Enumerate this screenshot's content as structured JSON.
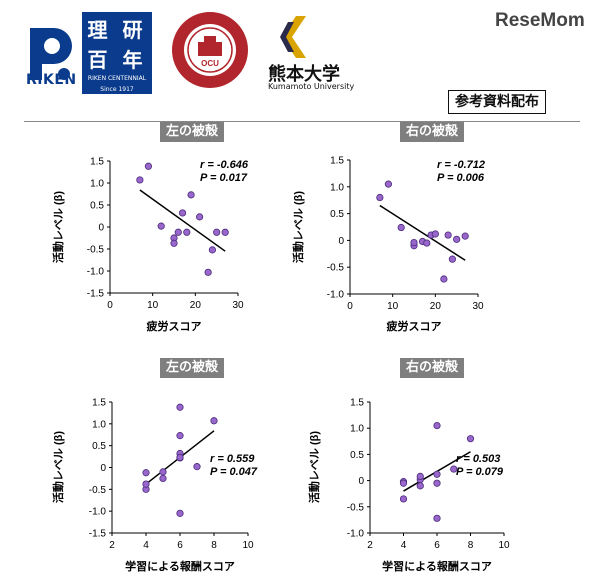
{
  "header": {
    "riken_text": "RIKEN",
    "centennial_line1": "理 研",
    "centennial_line2": "百 年",
    "centennial_small1": "RIKEN CENTENNIAL",
    "centennial_small2": "Since 1917",
    "kumamoto_jp": "熊本大学",
    "kumamoto_en": "Kumamoto University",
    "resemom": "ReseMom",
    "reference_label": "参考資料配布"
  },
  "colors": {
    "marker_fill": "#9966cc",
    "marker_stroke": "#4b2c7a",
    "title_bg": "#7f7f7f",
    "brand_blue": "#0a3b8c",
    "ocu_red": "#b0262c"
  },
  "chart_data": [
    {
      "type": "scatter",
      "title": "左の被殻",
      "xlabel": "疲労スコア",
      "ylabel": "活動レベル (β)",
      "xlim": [
        0,
        30
      ],
      "ylim": [
        -1.5,
        1.5
      ],
      "xticks": [
        0,
        10,
        20,
        30
      ],
      "yticks": [
        1.5,
        1.0,
        0.5,
        0,
        -0.5,
        -1.0,
        -1.5
      ],
      "ytick_labels": [
        "1.5",
        "1.0",
        "0.5",
        "0",
        "-0.5",
        "-1.0",
        "-1.5"
      ],
      "points": [
        [
          7,
          1.07
        ],
        [
          9,
          1.38
        ],
        [
          12,
          0.02
        ],
        [
          15,
          -0.25
        ],
        [
          15,
          -0.37
        ],
        [
          16,
          -0.12
        ],
        [
          17,
          0.32
        ],
        [
          18,
          -0.12
        ],
        [
          19,
          0.73
        ],
        [
          21,
          0.23
        ],
        [
          23,
          -1.03
        ],
        [
          24,
          -0.52
        ],
        [
          25,
          -0.12
        ],
        [
          27,
          -0.12
        ]
      ],
      "trend": [
        [
          7,
          0.84
        ],
        [
          27,
          -0.55
        ]
      ],
      "r_label": "r = -0.646",
      "p_label": "P = 0.017"
    },
    {
      "type": "scatter",
      "title": "右の被殻",
      "xlabel": "疲労スコア",
      "ylabel": "活動レベル (β)",
      "xlim": [
        0,
        30
      ],
      "ylim": [
        -1.0,
        1.5
      ],
      "xticks": [
        0,
        10,
        20,
        30
      ],
      "yticks": [
        1.5,
        1.0,
        0.5,
        0,
        -0.5,
        -1.0
      ],
      "ytick_labels": [
        "1.5",
        "1.0",
        "0.5",
        "0",
        "-0.5",
        "-1.0"
      ],
      "points": [
        [
          7,
          0.8
        ],
        [
          9,
          1.05
        ],
        [
          12,
          0.24
        ],
        [
          15,
          -0.1
        ],
        [
          15,
          -0.04
        ],
        [
          17,
          -0.02
        ],
        [
          18,
          -0.05
        ],
        [
          19,
          0.1
        ],
        [
          20,
          0.12
        ],
        [
          22,
          -0.72
        ],
        [
          23,
          0.1
        ],
        [
          24,
          -0.35
        ],
        [
          25,
          0.02
        ],
        [
          27,
          0.08
        ]
      ],
      "trend": [
        [
          7,
          0.65
        ],
        [
          27,
          -0.37
        ]
      ],
      "r_label": "r = -0.712",
      "p_label": "P = 0.006"
    },
    {
      "type": "scatter",
      "title": "左の被殻",
      "xlabel": "学習による報酬スコア",
      "ylabel": "活動レベル (β)",
      "xlim": [
        2,
        10
      ],
      "ylim": [
        -1.5,
        1.5
      ],
      "xticks": [
        2,
        4,
        6,
        8,
        10
      ],
      "yticks": [
        1.5,
        1.0,
        0.5,
        0,
        -0.5,
        -1.0,
        -1.5
      ],
      "ytick_labels": [
        "1.5",
        "1.0",
        "0.5",
        "0",
        "-0.5",
        "-1.0",
        "-1.5"
      ],
      "points": [
        [
          4,
          -0.12
        ],
        [
          4,
          -0.5
        ],
        [
          4,
          -0.38
        ],
        [
          5,
          -0.1
        ],
        [
          5,
          -0.25
        ],
        [
          6,
          1.38
        ],
        [
          6,
          0.73
        ],
        [
          6,
          0.32
        ],
        [
          6,
          0.22
        ],
        [
          6,
          -1.05
        ],
        [
          6,
          0.23
        ],
        [
          7,
          0.02
        ],
        [
          8,
          1.07
        ]
      ],
      "trend": [
        [
          4,
          -0.38
        ],
        [
          8,
          0.84
        ]
      ],
      "r_label": "r = 0.559",
      "p_label": "P = 0.047"
    },
    {
      "type": "scatter",
      "title": "右の被殻",
      "xlabel": "学習による報酬スコア",
      "ylabel": "活動レベル (β)",
      "xlim": [
        2,
        10
      ],
      "ylim": [
        -1.0,
        1.5
      ],
      "xticks": [
        2,
        4,
        6,
        8,
        10
      ],
      "yticks": [
        1.5,
        1.0,
        0.5,
        0,
        -0.5,
        -1.0
      ],
      "ytick_labels": [
        "1.5",
        "1.0",
        "0.5",
        "0",
        "-0.5",
        "-1.0"
      ],
      "points": [
        [
          4,
          -0.35
        ],
        [
          4,
          -0.02
        ],
        [
          4,
          -0.05
        ],
        [
          5,
          0.02
        ],
        [
          5,
          -0.1
        ],
        [
          5,
          0.08
        ],
        [
          6,
          1.05
        ],
        [
          6,
          0.12
        ],
        [
          6,
          -0.05
        ],
        [
          6,
          -0.72
        ],
        [
          7,
          0.22
        ],
        [
          8,
          0.8
        ]
      ],
      "trend": [
        [
          4,
          -0.2
        ],
        [
          8,
          0.55
        ]
      ],
      "r_label": "r = 0.503",
      "p_label": "P = 0.079"
    }
  ]
}
